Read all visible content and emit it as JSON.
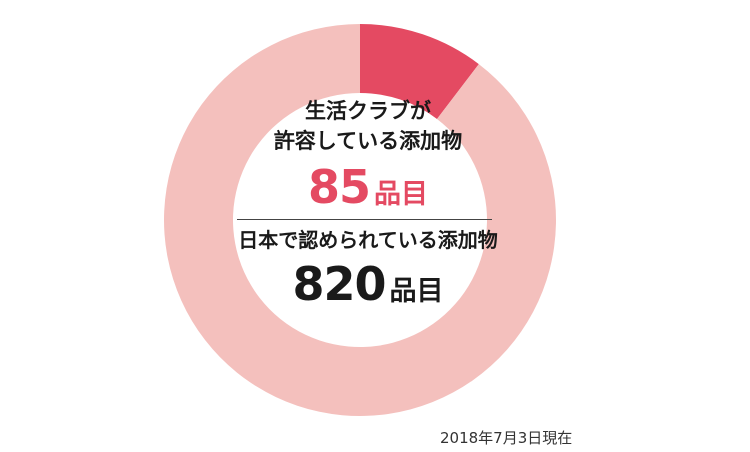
{
  "chart_data": {
    "type": "pie",
    "style": "donut",
    "segments": [
      {
        "value": 85,
        "color": "#e44a62"
      },
      {
        "value": 735,
        "color": "#f4c0bd"
      }
    ],
    "total": 820,
    "start_angle": "12 o'clock",
    "direction": "clockwise"
  },
  "labels": {
    "permitted_label": "生活クラブが\n許容している添加物",
    "permitted_value": "85",
    "permitted_unit": "品目",
    "japan_label": "日本で認められている添加物",
    "japan_value": "820",
    "japan_unit": "品目",
    "date_note": "2018年7月3日現在"
  }
}
